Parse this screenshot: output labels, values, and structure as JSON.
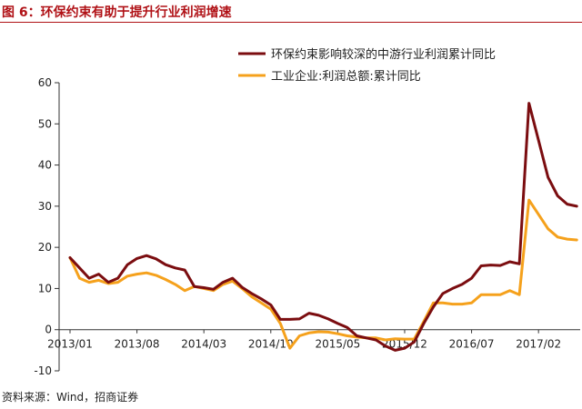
{
  "header": {
    "title": "图 6：环保约束有助于提升行业利润增速"
  },
  "source": "资料来源：Wind，招商证券",
  "chart_data": {
    "type": "line",
    "ylim": [
      -10,
      60
    ],
    "yticks": [
      -10,
      0,
      10,
      20,
      30,
      40,
      50,
      60
    ],
    "x_tick_labels": [
      {
        "index": 0,
        "label": "2013/01"
      },
      {
        "index": 7,
        "label": "2013/08"
      },
      {
        "index": 14,
        "label": "2014/03"
      },
      {
        "index": 21,
        "label": "2014/10"
      },
      {
        "index": 28,
        "label": "2015/05"
      },
      {
        "index": 35,
        "label": "2015/12"
      },
      {
        "index": 42,
        "label": "2016/07"
      },
      {
        "index": 49,
        "label": "2017/02"
      }
    ],
    "x": [
      "2013/01",
      "2013/02",
      "2013/03",
      "2013/04",
      "2013/05",
      "2013/06",
      "2013/07",
      "2013/08",
      "2013/09",
      "2013/10",
      "2013/11",
      "2013/12",
      "2014/01",
      "2014/02",
      "2014/03",
      "2014/04",
      "2014/05",
      "2014/06",
      "2014/07",
      "2014/08",
      "2014/09",
      "2014/10",
      "2014/11",
      "2014/12",
      "2015/01",
      "2015/02",
      "2015/03",
      "2015/04",
      "2015/05",
      "2015/06",
      "2015/07",
      "2015/08",
      "2015/09",
      "2015/10",
      "2015/11",
      "2015/12",
      "2016/01",
      "2016/02",
      "2016/03",
      "2016/04",
      "2016/05",
      "2016/06",
      "2016/07",
      "2016/08",
      "2016/09",
      "2016/10",
      "2016/11",
      "2016/12",
      "2017/01",
      "2017/02",
      "2017/03",
      "2017/04",
      "2017/05",
      "2017/06"
    ],
    "series": [
      {
        "name": "环保约束影响较深的中游行业利润累计同比",
        "color": "#7b0d10",
        "values": [
          17.5,
          15,
          12.5,
          13.5,
          11.5,
          12.5,
          15.8,
          17.3,
          18,
          17.2,
          15.8,
          15,
          14.5,
          10.5,
          10.2,
          9.8,
          11.5,
          12.5,
          10.3,
          8.8,
          7.5,
          6,
          2.5,
          2.5,
          2.6,
          4,
          3.5,
          2.6,
          1.5,
          0.5,
          -1.5,
          -2,
          -2.5,
          -4,
          -5,
          -4.5,
          -3,
          1.5,
          5.5,
          8.8,
          10,
          11,
          12.5,
          15.5,
          15.7,
          15.6,
          16.5,
          16,
          55,
          46,
          37,
          32.5,
          30.5,
          30
        ]
      },
      {
        "name": "工业企业:利润总额:累计同比",
        "color": "#f5a11c",
        "values": [
          17.5,
          12.5,
          11.5,
          12,
          11.2,
          11.5,
          13,
          13.5,
          13.8,
          13.2,
          12.2,
          11,
          9.5,
          10.5,
          10,
          9.5,
          11,
          11.8,
          10,
          8,
          6.5,
          5,
          1.5,
          -4.5,
          -1.5,
          -0.8,
          -0.5,
          -0.6,
          -1,
          -1.5,
          -1.8,
          -2,
          -2,
          -2.5,
          -2.2,
          -2.3,
          -2.3,
          2,
          6.5,
          6.5,
          6.2,
          6.2,
          6.5,
          8.5,
          8.5,
          8.5,
          9.5,
          8.5,
          31.5,
          28,
          24.5,
          22.5,
          22,
          21.8
        ]
      }
    ],
    "legend_position": "top-right",
    "grid": false
  }
}
